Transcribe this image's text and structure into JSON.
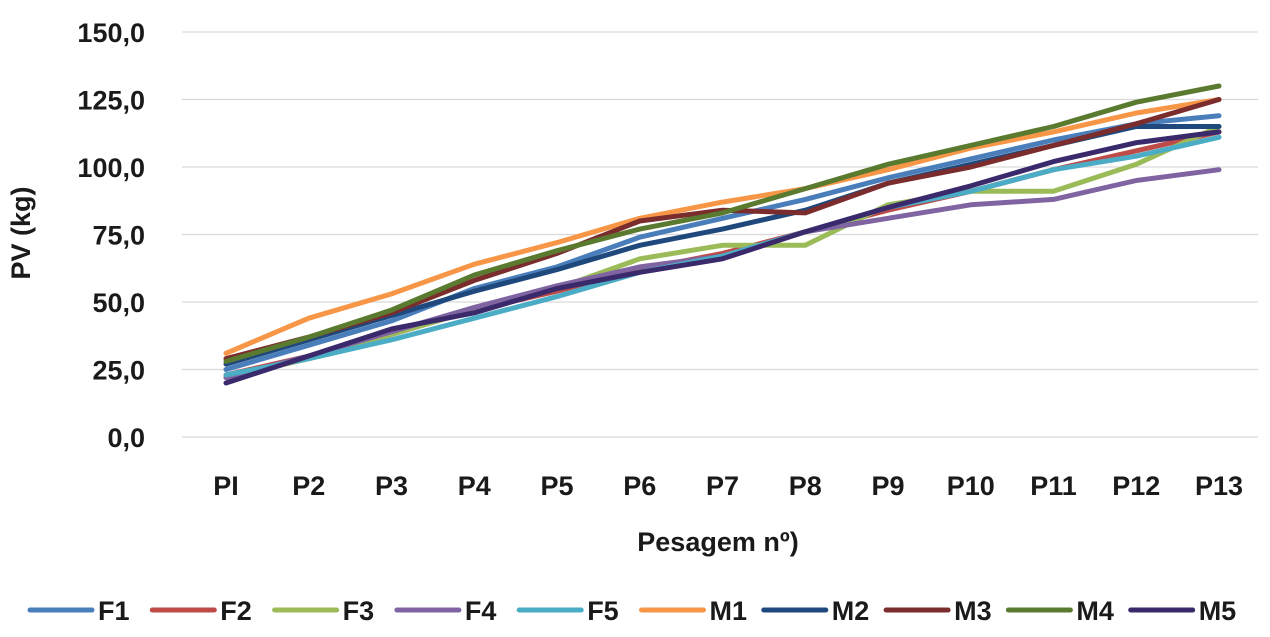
{
  "chart_data": {
    "type": "line",
    "title": "",
    "xlabel": "Pesagem nº)",
    "ylabel": "PV (kg)",
    "ylim": [
      0,
      150
    ],
    "yticks": [
      "0,0",
      "25,0",
      "50,0",
      "75,0",
      "100,0",
      "125,0",
      "150,0"
    ],
    "categories": [
      "PI",
      "P2",
      "P3",
      "P4",
      "P5",
      "P6",
      "P7",
      "P8",
      "P9",
      "P10",
      "P11",
      "P12",
      "P13"
    ],
    "grid": true,
    "legend_position": "bottom",
    "series": [
      {
        "name": "F1",
        "color": "#4a7ebb",
        "values": [
          25,
          34,
          43,
          55,
          63,
          74,
          81,
          88,
          96,
          103,
          110,
          116,
          119
        ]
      },
      {
        "name": "F2",
        "color": "#be4b48",
        "values": [
          23,
          30,
          38,
          47,
          54,
          62,
          68,
          76,
          84,
          91,
          99,
          106,
          113
        ]
      },
      {
        "name": "F3",
        "color": "#9bbb59",
        "values": [
          22,
          29,
          38,
          47,
          55,
          66,
          71,
          71,
          86,
          91,
          91,
          101,
          115
        ]
      },
      {
        "name": "F4",
        "color": "#8064a2",
        "values": [
          22,
          30,
          39,
          48,
          56,
          63,
          67,
          76,
          81,
          86,
          88,
          95,
          99
        ]
      },
      {
        "name": "F5",
        "color": "#4bacc6",
        "values": [
          23,
          29,
          36,
          44,
          52,
          61,
          67,
          76,
          85,
          91,
          99,
          104,
          111
        ]
      },
      {
        "name": "M1",
        "color": "#f79646",
        "values": [
          31,
          44,
          53,
          64,
          72,
          81,
          87,
          92,
          99,
          107,
          113,
          120,
          125
        ]
      },
      {
        "name": "M2",
        "color": "#1f497d",
        "values": [
          27,
          36,
          45,
          54,
          62,
          71,
          77,
          84,
          94,
          101,
          108,
          115,
          115
        ]
      },
      {
        "name": "M3",
        "color": "#7b2c2c",
        "values": [
          29,
          37,
          46,
          58,
          68,
          80,
          84,
          83,
          94,
          100,
          108,
          116,
          125
        ]
      },
      {
        "name": "M4",
        "color": "#5a7a2f",
        "values": [
          28,
          37,
          47,
          60,
          69,
          77,
          83,
          92,
          101,
          108,
          115,
          124,
          130
        ]
      },
      {
        "name": "M5",
        "color": "#3b2a6b",
        "values": [
          20,
          30,
          40,
          46,
          55,
          61,
          66,
          76,
          85,
          93,
          102,
          109,
          113
        ]
      }
    ]
  }
}
